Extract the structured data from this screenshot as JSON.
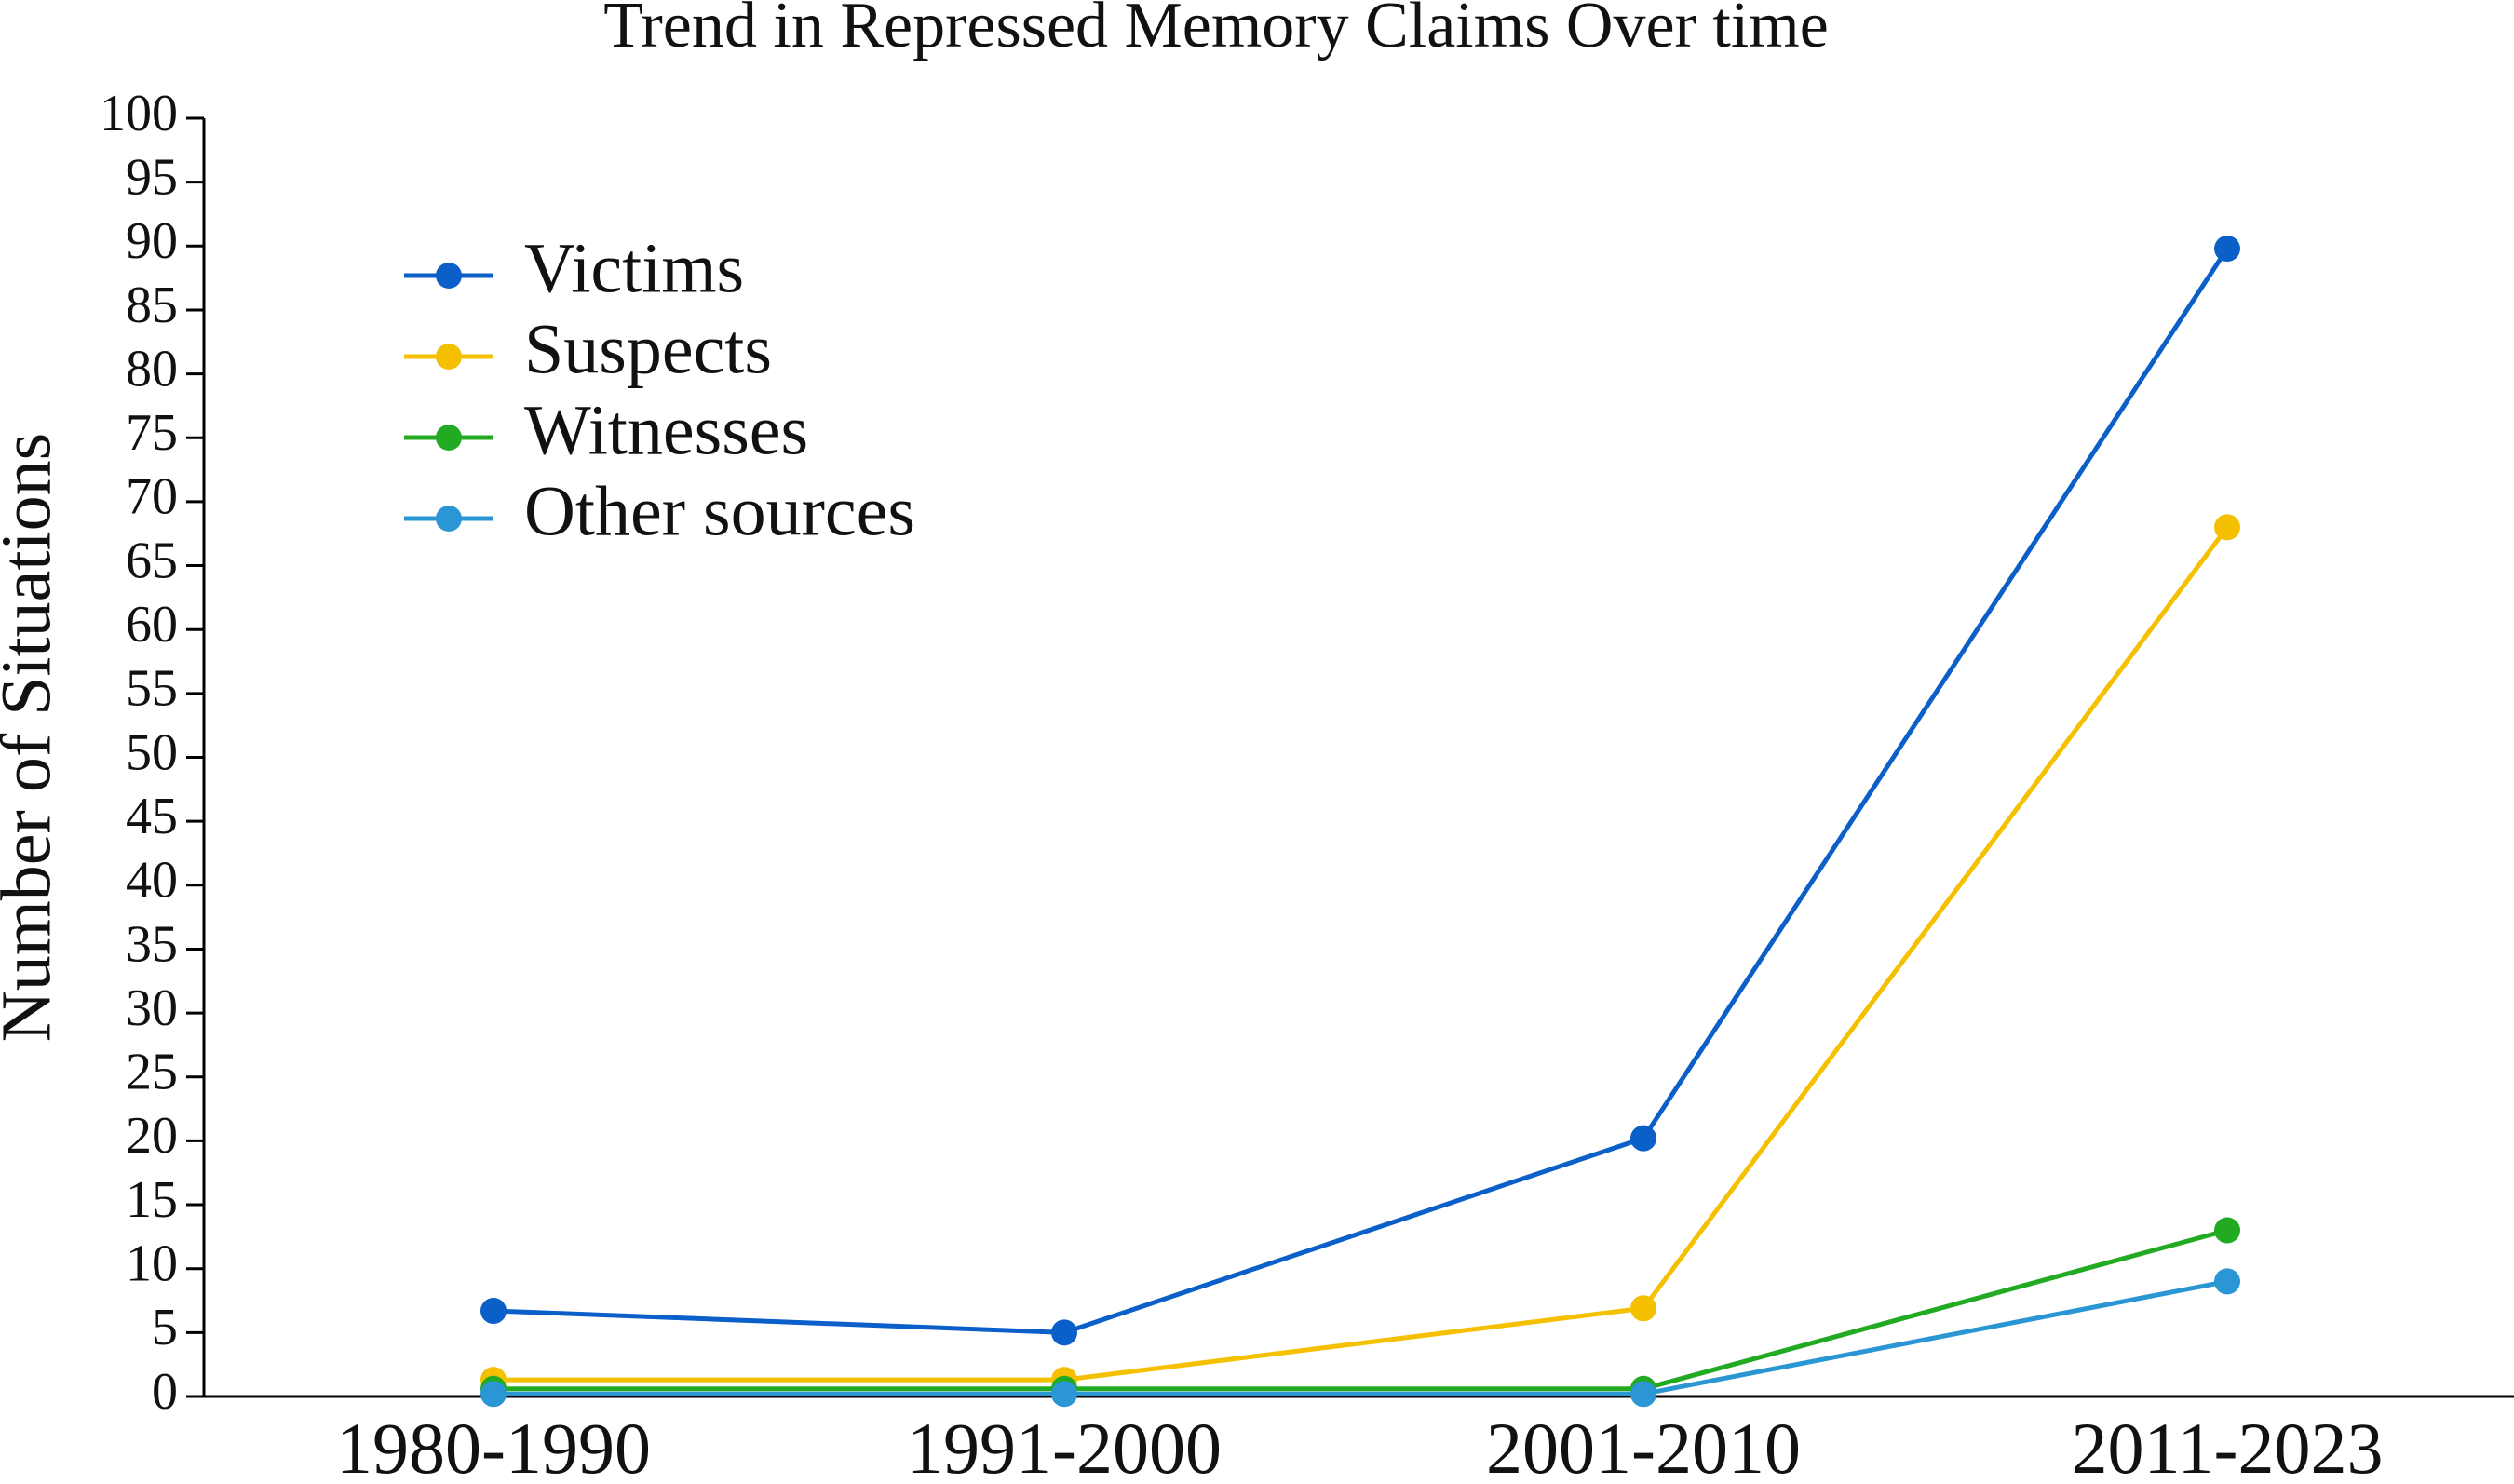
{
  "chart_data": {
    "type": "line",
    "title": "Trend in Repressed Memory Claims Over time",
    "y_label": "Number of Situations",
    "categories": [
      "1980-1990",
      "1991-2000",
      "2001-2010",
      "2011-2023"
    ],
    "series": [
      {
        "name": "Victims",
        "color": "#0a5fc8",
        "values": [
          6.7,
          5,
          20.2,
          89.8
        ]
      },
      {
        "name": "Suspects",
        "color": "#f5c000",
        "values": [
          1.3,
          1.3,
          6.9,
          68
        ]
      },
      {
        "name": "Witnesses",
        "color": "#22aa22",
        "values": [
          0.6,
          0.6,
          0.6,
          13
        ]
      },
      {
        "name": "Other sources",
        "color": "#2a96d4",
        "values": [
          0.2,
          0.2,
          0.2,
          9
        ]
      }
    ],
    "ylim": [
      0,
      100
    ],
    "yticks": [
      0,
      5,
      10,
      15,
      20,
      25,
      30,
      35,
      40,
      45,
      50,
      55,
      60,
      65,
      70,
      75,
      80,
      85,
      90,
      95,
      100
    ],
    "grid": false,
    "legend": "upper left"
  }
}
